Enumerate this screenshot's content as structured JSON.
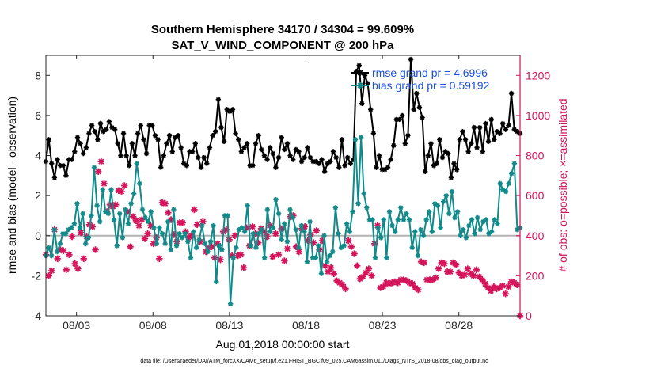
{
  "chart_data": {
    "type": "line",
    "title": "Southern Hemisphere 34170 / 34304 = 99.609%",
    "subtitle": "SAT_V_WIND_COMPONENT @ 200 hPa",
    "xlabel": "Aug.01,2018 00:00:00 start",
    "ylabel": "rmse and bias (model - observation)",
    "y2label": "# of obs: o=possible; ×=assimilated",
    "footnote": "data file: /Users/raeder/DAI/ATM_forcXX/CAM6_setup/f.e21.FHIST_BGC.f09_025.CAM6assim.011/Diags_NTrS_2018-08/obs_diag_output.nc",
    "x_tick_labels": [
      "08/03",
      "08/08",
      "08/13",
      "08/18",
      "08/23",
      "08/28"
    ],
    "x_tick_days": [
      3,
      8,
      13,
      18,
      23,
      28
    ],
    "xlim": [
      1.0,
      32.0
    ],
    "ylim": [
      -4,
      9
    ],
    "y_ticks": [
      -4,
      -2,
      0,
      2,
      4,
      6,
      8
    ],
    "y2lim": [
      0,
      1300
    ],
    "y2_ticks": [
      0,
      200,
      400,
      600,
      800,
      1000,
      1200
    ],
    "zero_line": 0,
    "colors": {
      "rmse": "#000000",
      "bias": "#138a8a",
      "obs": "#d4145a",
      "zero": "#b3b3b3",
      "legend_text": "#1a4fd8"
    },
    "legend": {
      "position": "top-right",
      "entries": [
        "rmse grand pr = 4.6996",
        "bias grand pr = 0.59192"
      ]
    },
    "series": [
      {
        "name": "rmse",
        "values": [
          3.7,
          4.8,
          3.6,
          2.9,
          3.8,
          3.5,
          3.5,
          3.0,
          3.8,
          3.8,
          4.2,
          4.9,
          4.6,
          4.1,
          4.4,
          5.1,
          5.5,
          5.2,
          4.8,
          5.6,
          5.2,
          5.3,
          5.7,
          5.4,
          5.3,
          4.6,
          4.0,
          5.1,
          4.0,
          3.5,
          4.6,
          4.0,
          5.1,
          5.5,
          4.8,
          4.1,
          5.5,
          5.5,
          5.0,
          4.8,
          3.4,
          4.0,
          4.6,
          5.0,
          4.2,
          4.9,
          5.0,
          4.4,
          3.6,
          3.5,
          4.2,
          4.2,
          4.6,
          3.9,
          3.4,
          3.9,
          3.6,
          4.4,
          5.0,
          5.2,
          6.8,
          5.4,
          4.7,
          6.3,
          6.2,
          6.3,
          5.1,
          4.8,
          4.2,
          4.4,
          4.6,
          3.5,
          3.5,
          4.6,
          5.0,
          4.3,
          4.0,
          3.8,
          4.4,
          4.1,
          3.4,
          3.9,
          4.9,
          4.3,
          4.6,
          4.0,
          3.8,
          4.3,
          4.2,
          3.7,
          3.9,
          4.4,
          3.9,
          3.7,
          3.7,
          3.6,
          3.8,
          3.2,
          3.6,
          3.7,
          4.2,
          3.9,
          3.4,
          4.8,
          3.5,
          3.9,
          3.6,
          3.8,
          8.2,
          8.5,
          6.6,
          8.0,
          7.6,
          6.3,
          5.1,
          3.4,
          4.0,
          3.3,
          3.3,
          3.4,
          3.8,
          4.5,
          5.8,
          5.8,
          6.0,
          4.6,
          5.0,
          8.8,
          6.3,
          7.1,
          6.4,
          5.9,
          3.2,
          4.0,
          4.6,
          3.5,
          3.6,
          4.8,
          3.9,
          4.2,
          4.1,
          2.9,
          3.6,
          3.3,
          4.8,
          5.2,
          4.8,
          4.2,
          4.6,
          5.4,
          4.4,
          5.4,
          4.2,
          5.6,
          4.7,
          5.8,
          4.8,
          5.2,
          5.1,
          5.6,
          5.3,
          5.5,
          7.1,
          5.3,
          5.2,
          5.1
        ]
      },
      {
        "name": "bias",
        "values": [
          -1.0,
          -0.6,
          -1.0,
          0.3,
          -0.8,
          -0.4,
          0.1,
          0.1,
          0.3,
          0.4,
          0.6,
          1.6,
          0.4,
          1.1,
          -0.4,
          -0.1,
          1.0,
          3.4,
          1.5,
          0.7,
          2.3,
          1.2,
          1.1,
          2.3,
          0.8,
          -0.5,
          1.1,
          -0.1,
          1.3,
          0.6,
          1.6,
          2.1,
          3.6,
          2.6,
          1.3,
          0.9,
          0.7,
          1.2,
          0.4,
          -0.4,
          0.4,
          0.1,
          -0.4,
          0.7,
          -0.7,
          1.3,
          -0.5,
          0.1,
          -0.1,
          0.1,
          -0.3,
          -1.1,
          0.2,
          -0.6,
          -0.2,
          0.5,
          -0.4,
          -0.8,
          -0.3,
          0.5,
          -2.3,
          -0.5,
          -0.7,
          1.0,
          1.0,
          -3.4,
          -1.1,
          -0.6,
          0.3,
          0.4,
          0.2,
          1.5,
          -0.5,
          0.1,
          -0.6,
          0.1,
          0.3,
          -1.1,
          1.3,
          0.2,
          0.4,
          1.8,
          1.1,
          -0.2,
          0.6,
          -0.3,
          1.3,
          0.9,
          0.3,
          -0.6,
          0.5,
          0.2,
          -1.3,
          0.7,
          -1.1,
          -1.1,
          -0.5,
          -1.9,
          0.0,
          -1.3,
          -1.0,
          -0.8,
          1.4,
          0.1,
          -0.6,
          -0.5,
          0.6,
          0.2,
          1.2,
          4.8,
          1.6,
          4.9,
          2.1,
          1.4,
          0.8,
          0.8,
          -1.1,
          0.4,
          -0.1,
          0.8,
          -1.1,
          1.2,
          0.5,
          0.2,
          0.8,
          1.4,
          0.8,
          1.1,
          0.8,
          -0.6,
          0.2,
          -1.0,
          0.3,
          0.0,
          0.8,
          1.2,
          0.2,
          1.6,
          1.5,
          0.4,
          1.7,
          2.0,
          1.1,
          2.2,
          0.9,
          1.2,
          0.0,
          0.3,
          -0.1,
          0.5,
          0.8,
          0.1,
          0.9,
          0.3,
          0.7,
          0.8,
          0.1,
          0.2,
          0.8,
          0.6,
          2.6,
          2.3,
          2.2,
          2.6,
          3.1,
          3.6,
          0.3,
          0.4
        ]
      },
      {
        "name": "obs assimilated",
        "values": [
          305,
          200,
          225,
          430,
          285,
          330,
          325,
          230,
          305,
          395,
          260,
          235,
          415,
          285,
          395,
          455,
          445,
          330,
          720,
          770,
          660,
          520,
          555,
          545,
          555,
          625,
          620,
          650,
          520,
          345,
          495,
          475,
          450,
          480,
          385,
          410,
          450,
          360,
          390,
          285,
          565,
          560,
          515,
          480,
          405,
          370,
          465,
          465,
          420,
          390,
          400,
          530,
          455,
          370,
          470,
          320,
          340,
          345,
          290,
          360,
          280,
          420,
          430,
          380,
          300,
          400,
          300,
          305,
          240,
          440,
          350,
          445,
          410,
          365,
          435,
          420,
          395,
          450,
          295,
          410,
          305,
          435,
          275,
          335,
          495,
          500,
          345,
          320,
          435,
          445,
          375,
          405,
          365,
          425,
          330,
          375,
          250,
          220,
          240,
          210,
          175,
          165,
          155,
          135,
          375,
          345,
          310,
          250,
          185,
          195,
          215,
          235,
          200,
          360,
          450,
          140,
          145,
          165,
          160,
          165,
          170,
          165,
          180,
          180,
          175,
          165,
          160,
          140,
          130,
          270,
          265,
          180,
          180,
          180,
          190,
          235,
          265,
          260,
          220,
          220,
          265,
          255,
          215,
          200,
          205,
          235,
          210,
          200,
          230,
          195,
          180,
          160,
          140,
          125,
          145,
          135,
          140,
          150,
          110,
          145,
          170,
          165,
          155,
          0
        ]
      }
    ]
  }
}
